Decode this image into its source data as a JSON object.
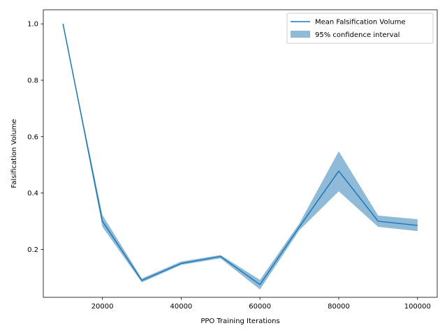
{
  "chart_data": {
    "type": "line",
    "xlabel": "PPO Training Iterations",
    "ylabel": "Falsification Volume",
    "xlim": [
      5000,
      105000
    ],
    "ylim": [
      0.03,
      1.05
    ],
    "x_ticks": [
      20000,
      40000,
      60000,
      80000,
      100000
    ],
    "y_ticks": [
      0.2,
      0.4,
      0.6,
      0.8,
      1.0
    ],
    "x_tick_labels": [
      "20000",
      "40000",
      "60000",
      "80000",
      "100000"
    ],
    "y_tick_labels": [
      "0.2",
      "0.4",
      "0.6",
      "0.8",
      "1.0"
    ],
    "x": [
      10000,
      20000,
      30000,
      40000,
      50000,
      60000,
      70000,
      80000,
      90000,
      100000
    ],
    "series": [
      {
        "name": "Mean Falsification Volume",
        "values": [
          1.0,
          0.3,
          0.09,
          0.15,
          0.175,
          0.075,
          0.28,
          0.478,
          0.3,
          0.285
        ],
        "color": "#1f77b4"
      }
    ],
    "confidence_interval": {
      "name": "95% confidence interval",
      "lower": [
        1.0,
        0.28,
        0.083,
        0.145,
        0.168,
        0.058,
        0.268,
        0.406,
        0.28,
        0.265
      ],
      "upper": [
        1.0,
        0.322,
        0.097,
        0.157,
        0.18,
        0.092,
        0.292,
        0.548,
        0.32,
        0.307
      ],
      "color": "#1f77b4",
      "opacity": 0.5
    },
    "legend": {
      "position": "top-right",
      "entries": [
        "Mean Falsification Volume",
        "95% confidence interval"
      ]
    },
    "grid": false
  }
}
